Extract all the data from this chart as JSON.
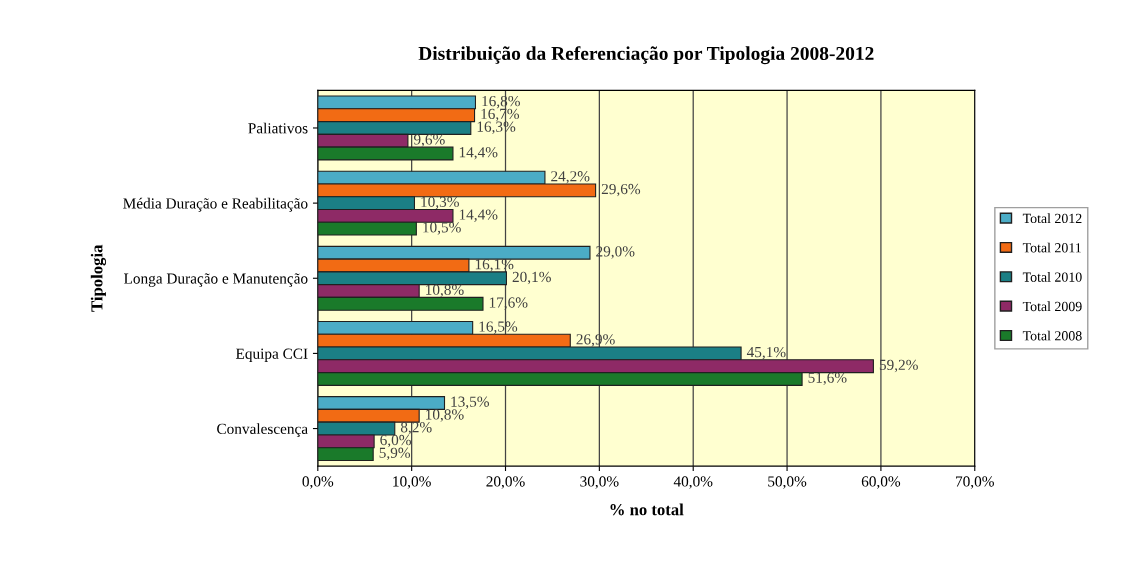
{
  "chart_data": {
    "type": "bar",
    "orientation": "horizontal",
    "title": "Distribuição da Referenciação por Tipologia 2008-2012",
    "xlabel": "% no total",
    "ylabel": "Tipologia",
    "categories": [
      "Paliativos",
      "Média Duração e Reabilitação",
      "Longa Duração e Manutenção",
      "Equipa CCI",
      "Convalescença"
    ],
    "series": [
      {
        "name": "Total 2012",
        "color": "#4bacc6",
        "values": [
          16.8,
          24.2,
          29.0,
          16.5,
          13.5
        ],
        "value_labels": [
          "16,8%",
          "24,2%",
          "29,0%",
          "16,5%",
          "13,5%"
        ]
      },
      {
        "name": "Total 2011",
        "color": "#f26b14",
        "values": [
          16.7,
          29.6,
          16.1,
          26.9,
          10.8
        ],
        "value_labels": [
          "16,7%",
          "29,6%",
          "16,1%",
          "26,9%",
          "10,8%"
        ]
      },
      {
        "name": "Total 2010",
        "color": "#1b7f85",
        "values": [
          16.3,
          10.3,
          20.1,
          45.1,
          8.2
        ],
        "value_labels": [
          "16,3%",
          "10,3%",
          "20,1%",
          "45,1%",
          "8,2%"
        ]
      },
      {
        "name": "Total 2009",
        "color": "#8e2a66",
        "values": [
          9.6,
          14.4,
          10.8,
          59.2,
          6.0
        ],
        "value_labels": [
          "9,6%",
          "14,4%",
          "10,8%",
          "59,2%",
          "6,0%"
        ]
      },
      {
        "name": "Total 2008",
        "color": "#1a7a2a",
        "values": [
          14.4,
          10.5,
          17.6,
          51.6,
          5.9
        ],
        "value_labels": [
          "14,4%",
          "10,5%",
          "17,6%",
          "51,6%",
          "5,9%"
        ]
      }
    ],
    "xlim": [
      0,
      70
    ],
    "xticks": [
      {
        "value": 0,
        "label": "0,0%"
      },
      {
        "value": 10,
        "label": "10,0%"
      },
      {
        "value": 20,
        "label": "20,0%"
      },
      {
        "value": 30,
        "label": "30,0%"
      },
      {
        "value": 40,
        "label": "40,0%"
      },
      {
        "value": 50,
        "label": "50,0%"
      },
      {
        "value": 60,
        "label": "60,0%"
      },
      {
        "value": 70,
        "label": "70,0%"
      }
    ],
    "grid": "x",
    "legend": "right"
  }
}
